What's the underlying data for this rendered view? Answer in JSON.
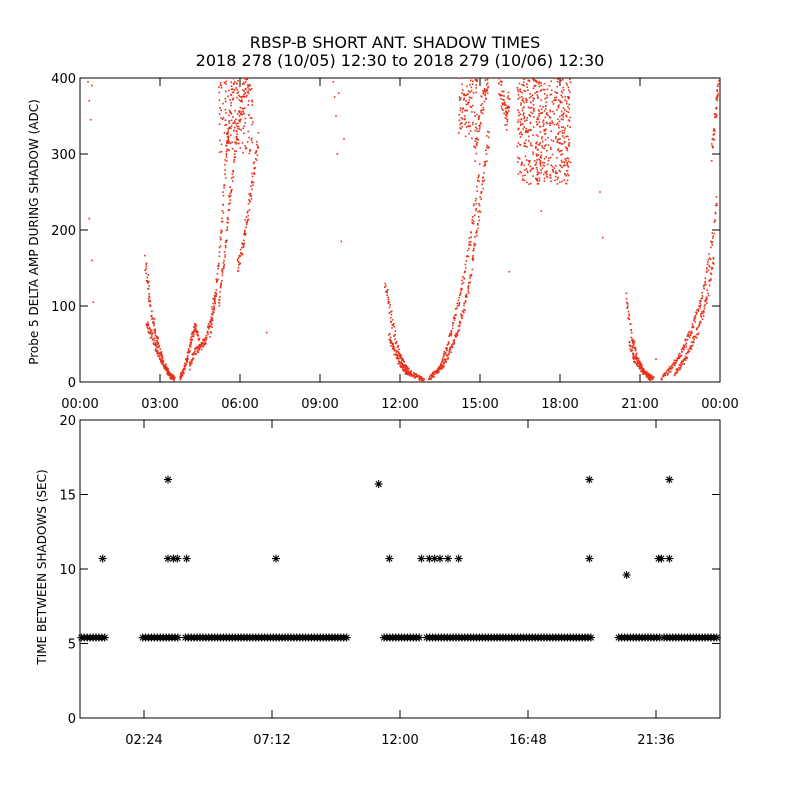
{
  "title_line1": "RBSP-B SHORT ANT. SHADOW TIMES",
  "title_line2": "2018 278 (10/05) 12:30 to 2018 279 (10/06) 12:30",
  "colors": {
    "top_points": "#e8311a",
    "bottom_points": "#000000",
    "axes": "#000000"
  },
  "chart_data": [
    {
      "type": "scatter",
      "title": "RBSP-B SHORT ANT. SHADOW TIMES",
      "ylabel": "Probe 5 DELTA AMP DURING SHADOW (ADC)",
      "xlabel": "",
      "x_unit": "hours",
      "xlim": [
        0,
        24
      ],
      "ylim": [
        0,
        400
      ],
      "x_tick_labels": [
        "00:00",
        "03:00",
        "06:00",
        "09:00",
        "12:00",
        "15:00",
        "18:00",
        "21:00",
        "00:00"
      ],
      "x_tick_values": [
        0,
        3,
        6,
        9,
        12,
        15,
        18,
        21,
        24
      ],
      "y_ticks": [
        0,
        100,
        200,
        300,
        400
      ],
      "marker": "dot",
      "point_color": "#e8311a",
      "traces": [
        {
          "x": [
            2.45,
            2.6,
            2.8,
            3.0,
            3.2,
            3.4,
            3.55
          ],
          "y": [
            160,
            110,
            70,
            40,
            20,
            8,
            5
          ]
        },
        {
          "x": [
            2.5,
            2.7,
            2.9,
            3.1,
            3.3,
            3.5
          ],
          "y": [
            80,
            60,
            40,
            25,
            12,
            5
          ]
        },
        {
          "x": [
            3.75,
            3.9,
            4.05,
            4.2,
            4.35,
            4.5
          ],
          "y": [
            5,
            15,
            35,
            60,
            75,
            50
          ]
        },
        {
          "x": [
            4.1,
            4.3,
            4.5,
            4.7,
            4.9,
            5.1
          ],
          "y": [
            20,
            40,
            45,
            55,
            80,
            120
          ]
        },
        {
          "x": [
            4.9,
            5.1,
            5.3,
            5.5,
            5.6,
            5.8
          ],
          "y": [
            60,
            120,
            200,
            300,
            350,
            400
          ]
        },
        {
          "x": [
            5.2,
            5.4,
            5.6,
            5.8,
            6.0,
            6.2,
            6.4
          ],
          "y": [
            100,
            160,
            230,
            300,
            360,
            390,
            400
          ]
        },
        {
          "x": [
            5.9,
            6.1,
            6.3,
            6.5,
            6.7
          ],
          "y": [
            150,
            180,
            220,
            270,
            320
          ]
        },
        {
          "x": [
            11.45,
            11.7,
            11.95,
            12.2,
            12.45,
            12.7,
            12.9
          ],
          "y": [
            130,
            80,
            40,
            20,
            10,
            5,
            3
          ]
        },
        {
          "x": [
            11.6,
            11.8,
            12.0,
            12.2,
            12.4
          ],
          "y": [
            60,
            40,
            25,
            15,
            8
          ]
        },
        {
          "x": [
            13.1,
            13.35,
            13.6,
            13.85,
            14.1,
            14.35,
            14.6,
            14.85,
            15.1,
            15.35
          ],
          "y": [
            5,
            12,
            22,
            38,
            60,
            90,
            130,
            190,
            260,
            330
          ]
        },
        {
          "x": [
            13.5,
            13.8,
            14.1,
            14.4,
            14.7,
            15.0
          ],
          "y": [
            20,
            50,
            90,
            140,
            200,
            280
          ]
        },
        {
          "x": [
            14.8,
            15.0,
            15.2,
            15.3
          ],
          "y": [
            300,
            350,
            390,
            400
          ]
        },
        {
          "x": [
            15.7,
            15.85,
            16.0,
            16.1
          ],
          "y": [
            400,
            370,
            340,
            380
          ]
        },
        {
          "x": [
            20.5,
            20.7,
            20.9,
            21.1,
            21.3,
            21.5
          ],
          "y": [
            110,
            60,
            30,
            15,
            8,
            4
          ]
        },
        {
          "x": [
            20.6,
            20.8,
            21.0,
            21.2,
            21.4
          ],
          "y": [
            50,
            30,
            20,
            10,
            5
          ]
        },
        {
          "x": [
            21.8,
            22.1,
            22.4,
            22.7,
            23.0,
            23.3,
            23.6,
            23.9
          ],
          "y": [
            5,
            15,
            30,
            50,
            75,
            110,
            160,
            240
          ]
        },
        {
          "x": [
            22.3,
            22.6,
            22.9,
            23.2,
            23.5,
            23.8
          ],
          "y": [
            10,
            25,
            45,
            70,
            110,
            170
          ]
        },
        {
          "x": [
            23.7,
            23.85,
            23.95
          ],
          "y": [
            300,
            360,
            400
          ]
        }
      ],
      "clusters": [
        {
          "x_range": [
            16.4,
            18.4
          ],
          "y_range": [
            260,
            400
          ],
          "count": 520
        },
        {
          "x_range": [
            5.2,
            6.5
          ],
          "y_range": [
            300,
            400
          ],
          "count": 140
        },
        {
          "x_range": [
            14.2,
            14.9
          ],
          "y_range": [
            320,
            400
          ],
          "count": 90
        }
      ],
      "scatter_points": [
        {
          "x": 0.3,
          "y": 395
        },
        {
          "x": 0.35,
          "y": 370
        },
        {
          "x": 0.4,
          "y": 345
        },
        {
          "x": 0.45,
          "y": 390
        },
        {
          "x": 0.35,
          "y": 215
        },
        {
          "x": 0.45,
          "y": 160
        },
        {
          "x": 0.5,
          "y": 105
        },
        {
          "x": 7.0,
          "y": 65
        },
        {
          "x": 9.5,
          "y": 395
        },
        {
          "x": 9.55,
          "y": 375
        },
        {
          "x": 9.6,
          "y": 350
        },
        {
          "x": 9.65,
          "y": 300
        },
        {
          "x": 9.7,
          "y": 380
        },
        {
          "x": 9.8,
          "y": 185
        },
        {
          "x": 9.9,
          "y": 320
        },
        {
          "x": 16.1,
          "y": 145
        },
        {
          "x": 17.3,
          "y": 225
        },
        {
          "x": 19.5,
          "y": 250
        },
        {
          "x": 19.6,
          "y": 190
        },
        {
          "x": 21.6,
          "y": 30
        }
      ]
    },
    {
      "type": "scatter",
      "title": "",
      "ylabel": "TIME BETWEEN SHADOWS (SEC)",
      "xlabel": "",
      "x_unit": "hours",
      "xlim": [
        0,
        24
      ],
      "ylim": [
        0,
        20
      ],
      "x_tick_labels": [
        "02:24",
        "07:12",
        "12:00",
        "16:48",
        "21:36"
      ],
      "x_tick_values": [
        2.4,
        7.2,
        12.0,
        16.8,
        21.6
      ],
      "y_ticks": [
        0,
        5,
        10,
        15,
        20
      ],
      "marker": "asterisk",
      "point_color": "#000000",
      "baseline": {
        "y": 5.4,
        "segments": [
          [
            0.05,
            0.95
          ],
          [
            2.35,
            3.7
          ],
          [
            3.95,
            10.05
          ],
          [
            11.4,
            12.8
          ],
          [
            13.0,
            19.2
          ],
          [
            20.2,
            21.75
          ],
          [
            21.9,
            23.95
          ]
        ]
      },
      "points": [
        {
          "x": 0.85,
          "y": 10.7
        },
        {
          "x": 3.3,
          "y": 16.0
        },
        {
          "x": 3.3,
          "y": 10.7
        },
        {
          "x": 3.5,
          "y": 10.7
        },
        {
          "x": 3.65,
          "y": 10.7
        },
        {
          "x": 4.0,
          "y": 10.7
        },
        {
          "x": 7.35,
          "y": 10.7
        },
        {
          "x": 11.2,
          "y": 15.7
        },
        {
          "x": 11.6,
          "y": 10.7
        },
        {
          "x": 12.8,
          "y": 10.7
        },
        {
          "x": 13.1,
          "y": 10.7
        },
        {
          "x": 13.3,
          "y": 10.7
        },
        {
          "x": 13.5,
          "y": 10.7
        },
        {
          "x": 13.8,
          "y": 10.7
        },
        {
          "x": 14.2,
          "y": 10.7
        },
        {
          "x": 19.1,
          "y": 16.0
        },
        {
          "x": 19.1,
          "y": 10.7
        },
        {
          "x": 20.5,
          "y": 9.6
        },
        {
          "x": 21.7,
          "y": 10.7
        },
        {
          "x": 21.8,
          "y": 10.7
        },
        {
          "x": 22.1,
          "y": 16.0
        },
        {
          "x": 22.1,
          "y": 10.7
        }
      ]
    }
  ]
}
